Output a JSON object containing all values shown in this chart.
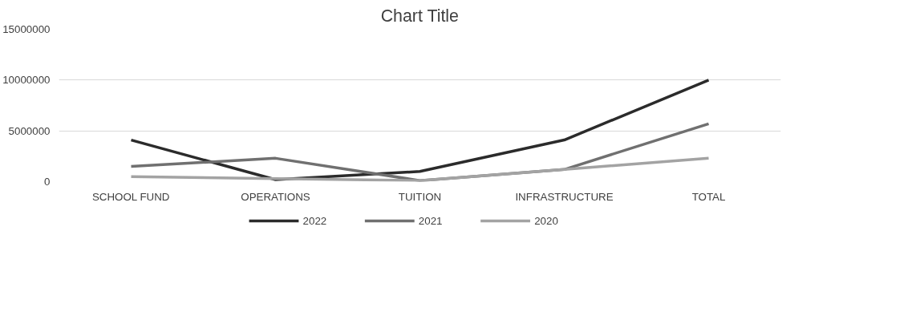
{
  "chart_data": {
    "type": "line",
    "title": "Chart Title",
    "categories": [
      "SCHOOL FUND",
      "OPERATIONS",
      "TUITION",
      "INFRASTRUCTURE",
      "TOTAL"
    ],
    "series": [
      {
        "name": "2022",
        "color": "#2b2b2b",
        "values": [
          4100000,
          200000,
          1000000,
          4100000,
          10000000
        ]
      },
      {
        "name": "2021",
        "color": "#707070",
        "values": [
          1500000,
          2300000,
          100000,
          1200000,
          5700000
        ]
      },
      {
        "name": "2020",
        "color": "#a3a3a3",
        "values": [
          500000,
          300000,
          100000,
          1200000,
          2300000
        ]
      }
    ],
    "ylim": [
      0,
      15000000
    ],
    "yticks": [
      0,
      5000000,
      10000000,
      15000000
    ],
    "grid": "y",
    "legend": "bottom",
    "line_style": "solid",
    "marker": "none"
  }
}
